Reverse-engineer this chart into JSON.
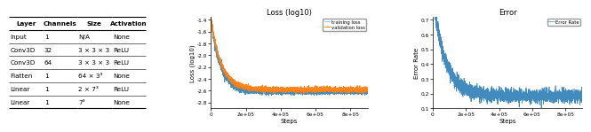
{
  "table_headers": [
    "Layer",
    "Channels",
    "Size",
    "Activation"
  ],
  "table_rows": [
    [
      "Input",
      "1",
      "N/A",
      "None"
    ],
    [
      "Conv3D",
      "32",
      "3 × 3 × 3",
      "ReLU"
    ],
    [
      "Conv3D",
      "64",
      "3 × 3 × 3",
      "ReLU"
    ],
    [
      "Flatten",
      "1",
      "64 × 3³",
      "None"
    ],
    [
      "Linear",
      "1",
      "2 × 7³",
      "ReLU"
    ],
    [
      "Linear",
      "1",
      "7³",
      "None"
    ]
  ],
  "loss_title": "Loss (log10)",
  "loss_xlabel": "Steps",
  "loss_ylabel": "Loss (log10)",
  "loss_ylim": [
    -2.9,
    -1.35
  ],
  "loss_xlim": [
    0,
    900000
  ],
  "loss_yticks": [
    -1.4,
    -1.6,
    -1.8,
    -2.0,
    -2.2,
    -2.4,
    -2.6,
    -2.8
  ],
  "training_color": "#1f77b4",
  "validation_color": "#ff7f0e",
  "error_title": "Error",
  "error_xlabel": "Steps",
  "error_ylabel": "Error Rate",
  "error_ylim": [
    0.1,
    0.72
  ],
  "error_xlim": [
    0,
    900000
  ],
  "error_yticks": [
    0.1,
    0.2,
    0.3,
    0.4,
    0.5,
    0.6,
    0.7
  ],
  "error_color": "#1f77b4",
  "bg_color": "#ffffff"
}
